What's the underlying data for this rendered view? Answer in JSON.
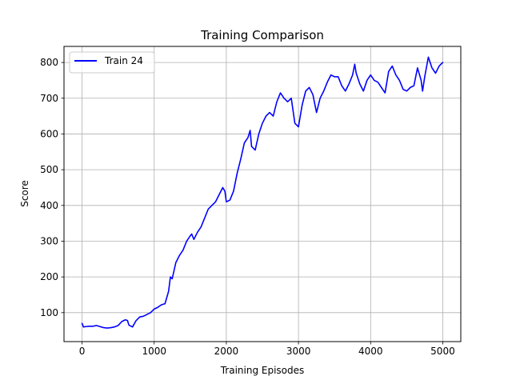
{
  "chart_data": {
    "type": "line",
    "title": "Training Comparison",
    "xlabel": "Training Episodes",
    "ylabel": "Score",
    "xlim": [
      -250,
      5250
    ],
    "ylim": [
      19,
      845
    ],
    "xticks": [
      0,
      1000,
      2000,
      3000,
      4000,
      5000
    ],
    "yticks": [
      100,
      200,
      300,
      400,
      500,
      600,
      700,
      800
    ],
    "grid": true,
    "legend_position": "top-left",
    "series": [
      {
        "name": "Train 24",
        "color": "#0000ff",
        "x": [
          0,
          20,
          50,
          100,
          150,
          200,
          250,
          300,
          350,
          400,
          450,
          500,
          550,
          600,
          630,
          650,
          700,
          750,
          800,
          850,
          900,
          950,
          1000,
          1050,
          1100,
          1150,
          1200,
          1225,
          1250,
          1300,
          1350,
          1400,
          1450,
          1500,
          1520,
          1550,
          1600,
          1650,
          1700,
          1750,
          1800,
          1850,
          1900,
          1950,
          1980,
          2000,
          2050,
          2100,
          2150,
          2200,
          2250,
          2300,
          2330,
          2350,
          2400,
          2450,
          2500,
          2550,
          2600,
          2650,
          2700,
          2750,
          2800,
          2850,
          2900,
          2950,
          3000,
          3050,
          3100,
          3150,
          3200,
          3250,
          3300,
          3350,
          3400,
          3450,
          3500,
          3550,
          3600,
          3650,
          3700,
          3750,
          3780,
          3800,
          3850,
          3900,
          3950,
          4000,
          4050,
          4100,
          4150,
          4200,
          4250,
          4300,
          4350,
          4400,
          4450,
          4500,
          4550,
          4600,
          4650,
          4700,
          4720,
          4750,
          4800,
          4850,
          4900,
          4950,
          5000
        ],
        "y": [
          70,
          60,
          61,
          62,
          62,
          64,
          61,
          58,
          57,
          58,
          60,
          64,
          75,
          80,
          78,
          65,
          60,
          78,
          88,
          90,
          95,
          100,
          110,
          115,
          122,
          125,
          160,
          200,
          195,
          240,
          260,
          275,
          300,
          315,
          320,
          305,
          325,
          340,
          365,
          390,
          400,
          410,
          430,
          450,
          440,
          410,
          415,
          440,
          490,
          530,
          575,
          590,
          610,
          565,
          555,
          600,
          630,
          650,
          660,
          650,
          690,
          715,
          700,
          690,
          700,
          630,
          620,
          680,
          720,
          730,
          710,
          660,
          700,
          720,
          745,
          765,
          760,
          760,
          735,
          720,
          740,
          765,
          795,
          770,
          740,
          720,
          750,
          765,
          750,
          745,
          730,
          715,
          775,
          790,
          765,
          750,
          725,
          720,
          730,
          735,
          785,
          750,
          720,
          760,
          815,
          785,
          770,
          790,
          800
        ]
      }
    ]
  }
}
